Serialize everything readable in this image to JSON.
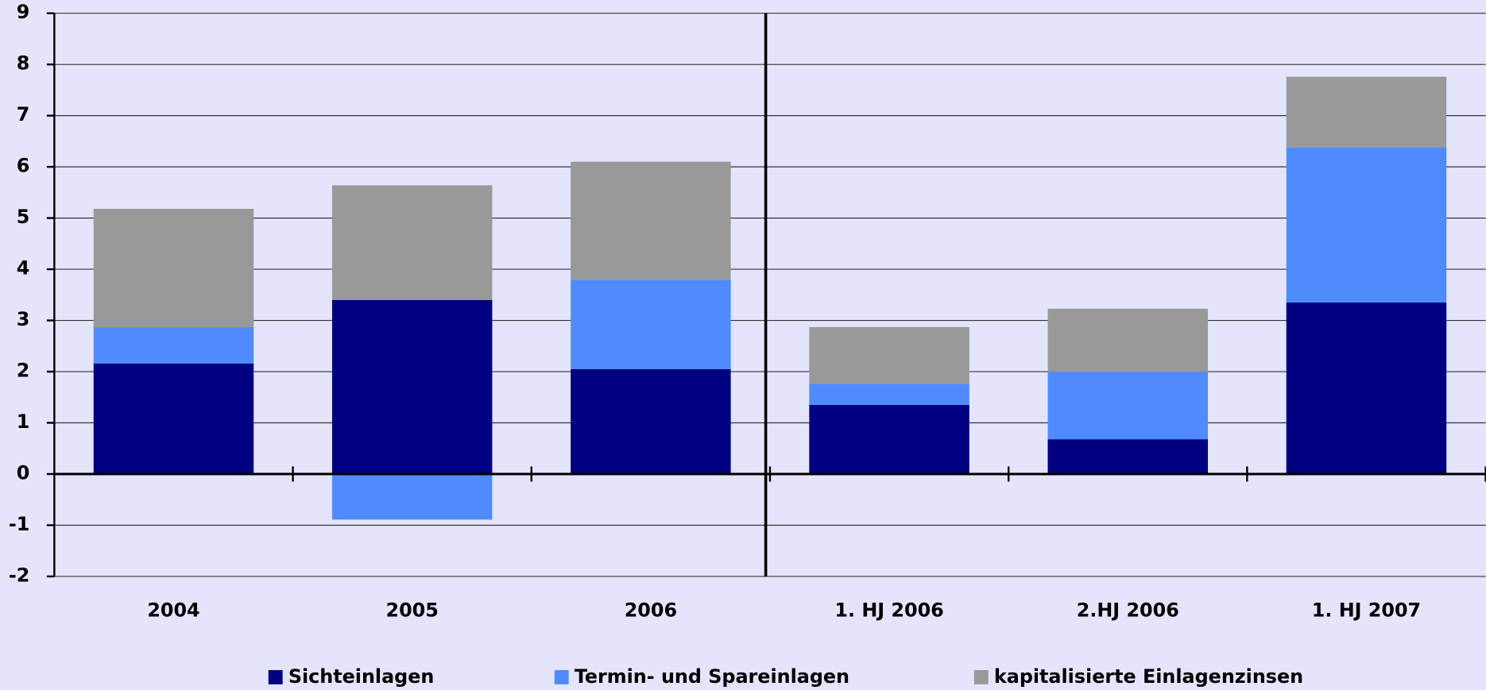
{
  "chart_data": {
    "type": "bar",
    "stacked": true,
    "categories": [
      "2004",
      "2005",
      "2006",
      "1. HJ 2006",
      "2.HJ 2006",
      "1. HJ 2007"
    ],
    "series": [
      {
        "name": "Sichteinlagen",
        "color": "#000080",
        "values": [
          2.16,
          3.4,
          2.05,
          1.35,
          0.68,
          3.35
        ]
      },
      {
        "name": "Termin- und Spareinlagen",
        "color": "#4f8bff",
        "values": [
          0.71,
          -0.89,
          1.74,
          0.41,
          1.32,
          3.03
        ]
      },
      {
        "name": "kapitalisierte Einlagenzinsen",
        "color": "#999999",
        "values": [
          2.31,
          2.24,
          2.31,
          1.11,
          1.23,
          1.38
        ]
      }
    ],
    "ylim": [
      -2,
      9
    ],
    "yticks": [
      -2,
      -1,
      0,
      1,
      2,
      3,
      4,
      5,
      6,
      7,
      8,
      9
    ],
    "grid": true,
    "legend": "bottom"
  }
}
